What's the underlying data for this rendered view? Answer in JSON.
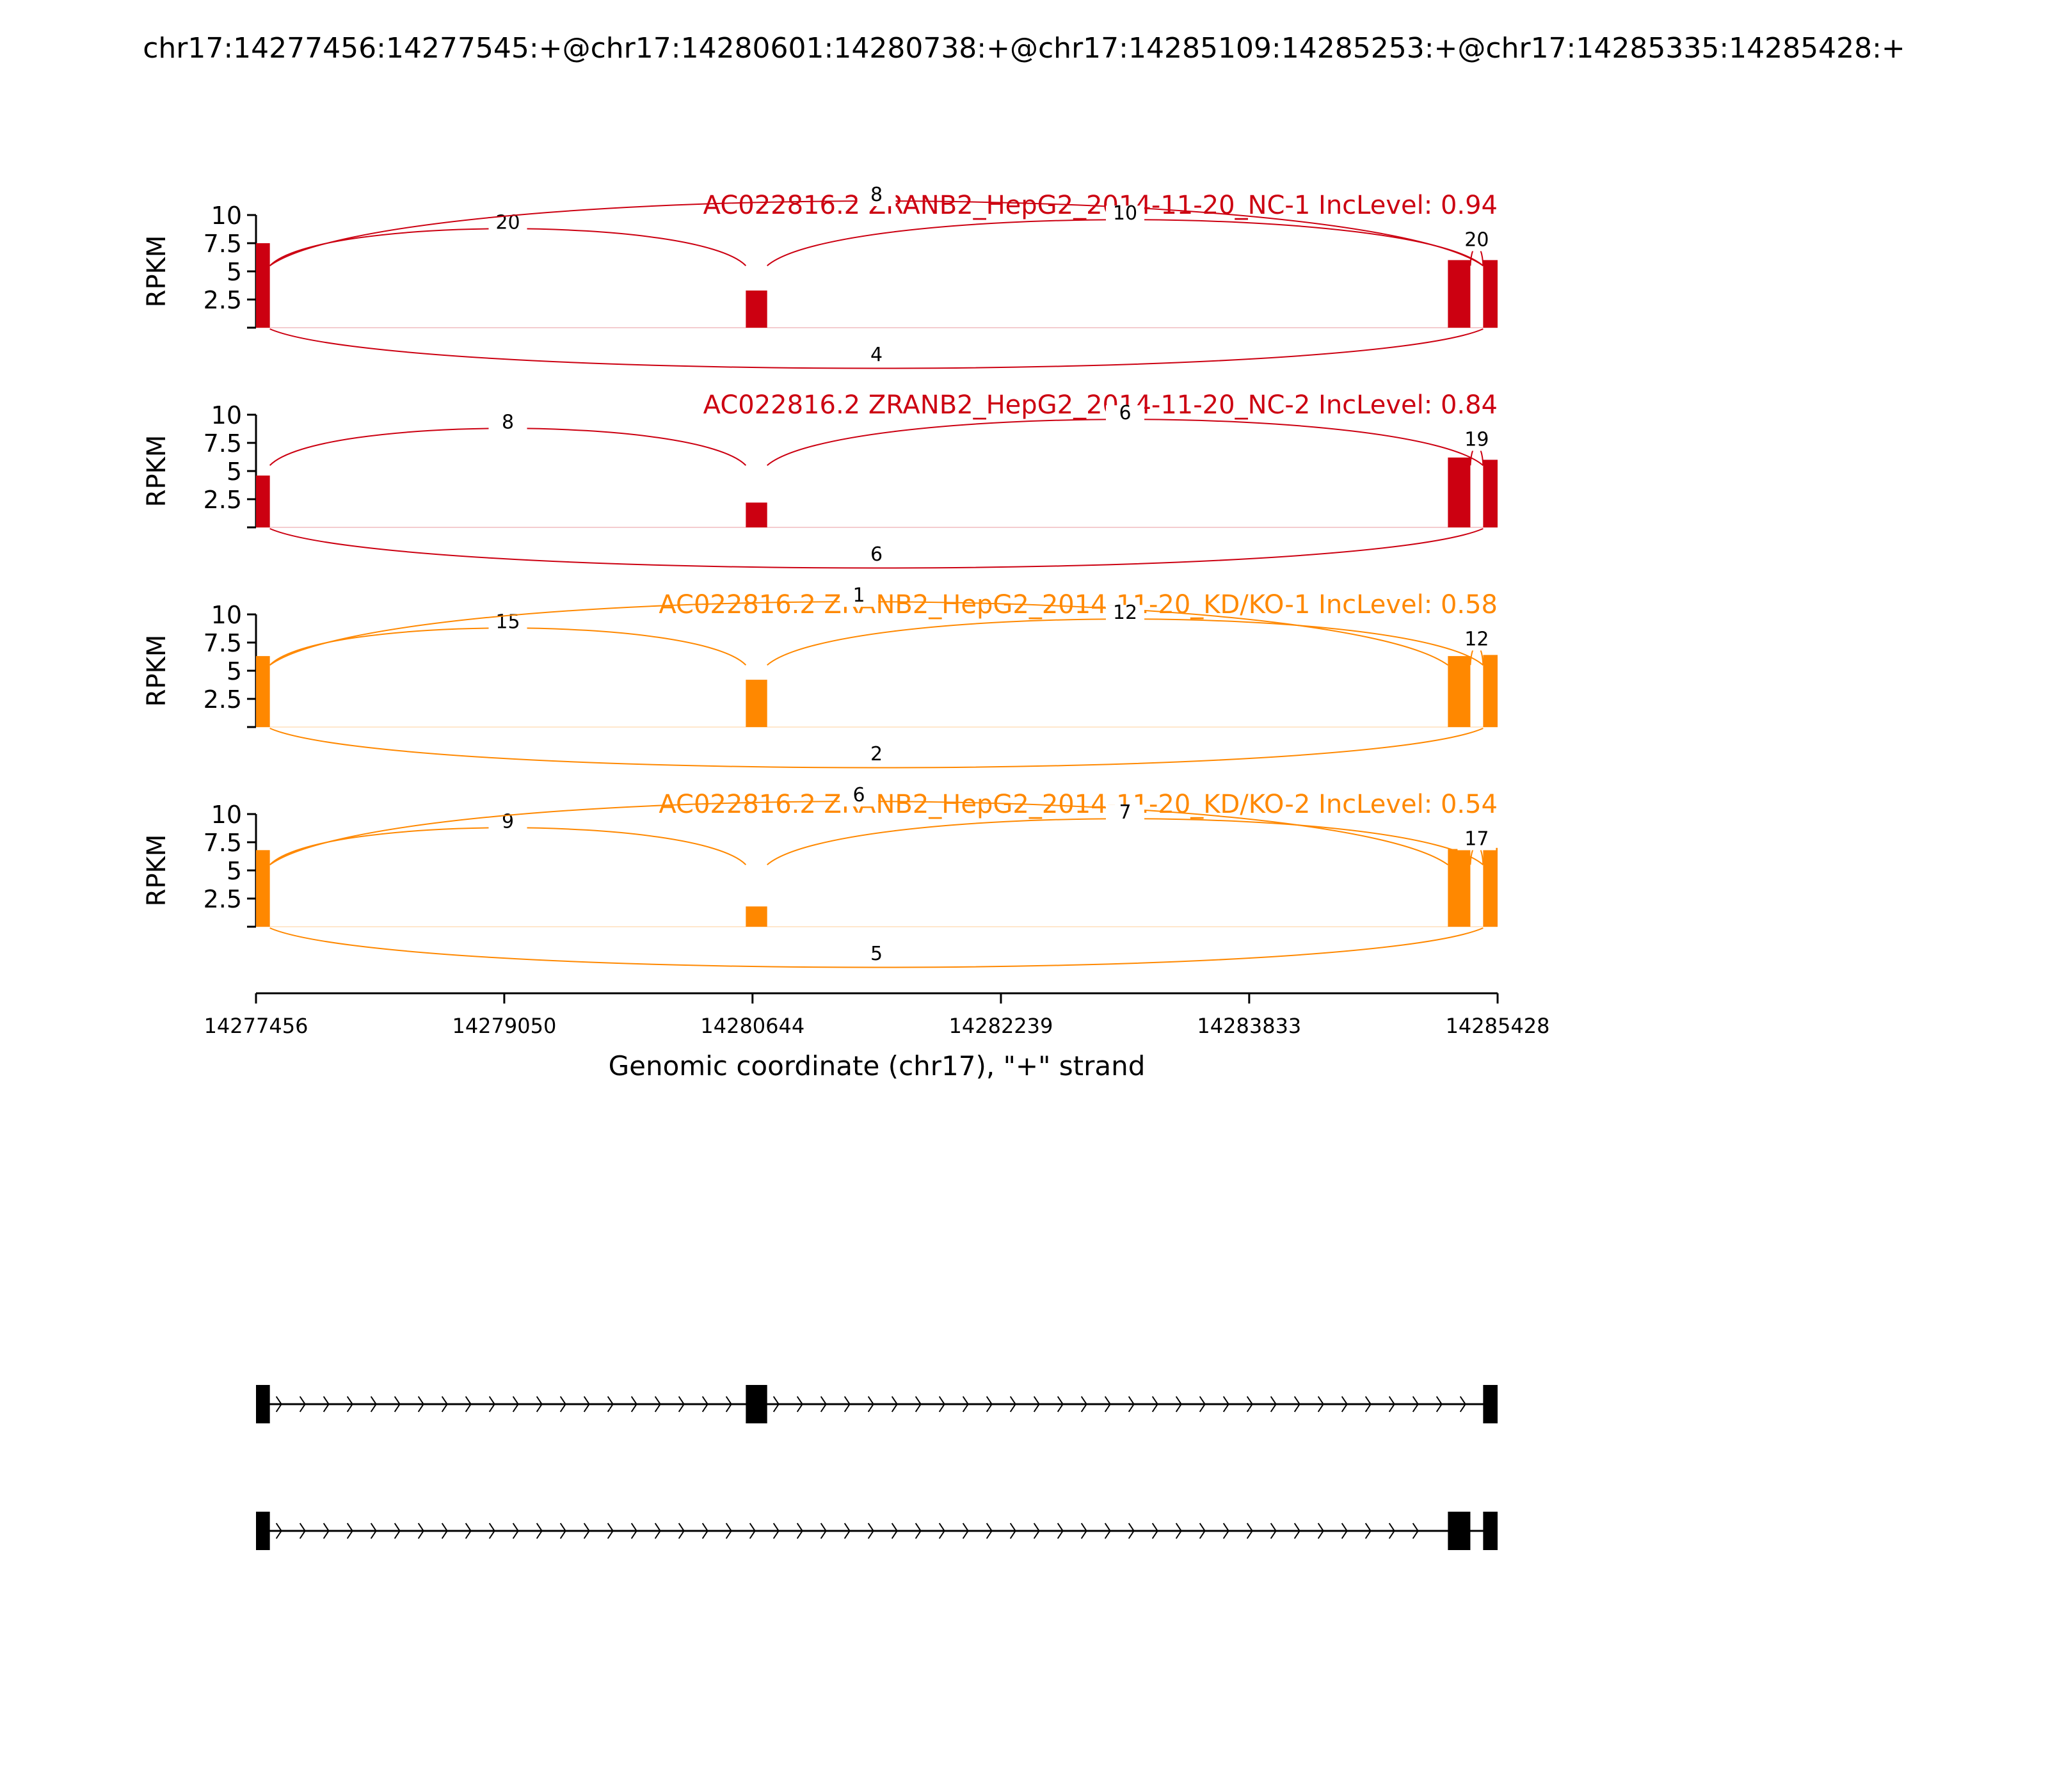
{
  "figure_title": "chr17:14277456:14277545:+@chr17:14280601:14280738:+@chr17:14285109:14285253:+@chr17:14285335:14285428:+",
  "colors": {
    "nc": "#cc0011",
    "kd": "#ff8800",
    "axis": "#000000",
    "exon": "#000000"
  },
  "chart_data": {
    "type": "sashimi",
    "xlabel": "Genomic coordinate (chr17), \"+\" strand",
    "xlim": [
      14277456,
      14285428
    ],
    "x_ticks": [
      "14277456",
      "14279050",
      "14280644",
      "14282239",
      "14283833",
      "14285428"
    ],
    "ylabel": "RPKM",
    "ylim": [
      0,
      10
    ],
    "y_ticks": [
      "2.5",
      "5",
      "7.5",
      "10"
    ],
    "exons": [
      {
        "start": 14277456,
        "end": 14277545
      },
      {
        "start": 14280601,
        "end": 14280738
      },
      {
        "start": 14285109,
        "end": 14285253
      },
      {
        "start": 14285335,
        "end": 14285428
      }
    ],
    "tracks": [
      {
        "label": "AC022816.2 ZRANB2_HepG2_2014-11-20_NC-1 IncLevel: 0.94",
        "group": "nc",
        "exon_cov": [
          7.5,
          3.3,
          6.0,
          6.0
        ],
        "junctions": [
          {
            "from": 14277545,
            "to": 14280601,
            "count": "20",
            "side": "top"
          },
          {
            "from": 14277545,
            "to": 14285335,
            "count": "8",
            "side": "top"
          },
          {
            "from": 14280738,
            "to": 14285335,
            "count": "10",
            "side": "top"
          },
          {
            "from": 14285253,
            "to": 14285335,
            "count": "20",
            "side": "top"
          },
          {
            "from": 14277545,
            "to": 14285335,
            "count": "4",
            "side": "bottom"
          }
        ]
      },
      {
        "label": "AC022816.2 ZRANB2_HepG2_2014-11-20_NC-2 IncLevel: 0.84",
        "group": "nc",
        "exon_cov": [
          4.6,
          2.2,
          6.2,
          6.0
        ],
        "junctions": [
          {
            "from": 14277545,
            "to": 14280601,
            "count": "8",
            "side": "top"
          },
          {
            "from": 14280738,
            "to": 14285335,
            "count": "6",
            "side": "top"
          },
          {
            "from": 14285253,
            "to": 14285335,
            "count": "19",
            "side": "top"
          },
          {
            "from": 14277545,
            "to": 14285335,
            "count": "6",
            "side": "bottom"
          }
        ]
      },
      {
        "label": "AC022816.2 ZRANB2_HepG2_2014-11-20_KD/KO-1 IncLevel: 0.58",
        "group": "kd",
        "exon_cov": [
          6.3,
          4.2,
          6.3,
          6.4
        ],
        "junctions": [
          {
            "from": 14277545,
            "to": 14280601,
            "count": "15",
            "side": "top"
          },
          {
            "from": 14277545,
            "to": 14285109,
            "count": "1",
            "side": "top"
          },
          {
            "from": 14280738,
            "to": 14285335,
            "count": "12",
            "side": "top"
          },
          {
            "from": 14285253,
            "to": 14285335,
            "count": "12",
            "side": "top"
          },
          {
            "from": 14277545,
            "to": 14285335,
            "count": "2",
            "side": "bottom"
          }
        ]
      },
      {
        "label": "AC022816.2 ZRANB2_HepG2_2014-11-20_KD/KO-2 IncLevel: 0.54",
        "group": "kd",
        "exon_cov": [
          6.8,
          1.8,
          6.9,
          7.0
        ],
        "junctions": [
          {
            "from": 14277545,
            "to": 14280601,
            "count": "9",
            "side": "top"
          },
          {
            "from": 14277545,
            "to": 14285109,
            "count": "6",
            "side": "top"
          },
          {
            "from": 14280738,
            "to": 14285335,
            "count": "7",
            "side": "top"
          },
          {
            "from": 14285253,
            "to": 14285335,
            "count": "17",
            "side": "top"
          },
          {
            "from": 14277545,
            "to": 14285335,
            "count": "5",
            "side": "bottom"
          }
        ]
      }
    ],
    "isoforms": [
      {
        "exons": [
          [
            14277456,
            14277545
          ],
          [
            14280601,
            14280738
          ],
          [
            14285335,
            14285428
          ]
        ]
      },
      {
        "exons": [
          [
            14277456,
            14277545
          ],
          [
            14285109,
            14285253
          ],
          [
            14285335,
            14285428
          ]
        ]
      }
    ]
  }
}
